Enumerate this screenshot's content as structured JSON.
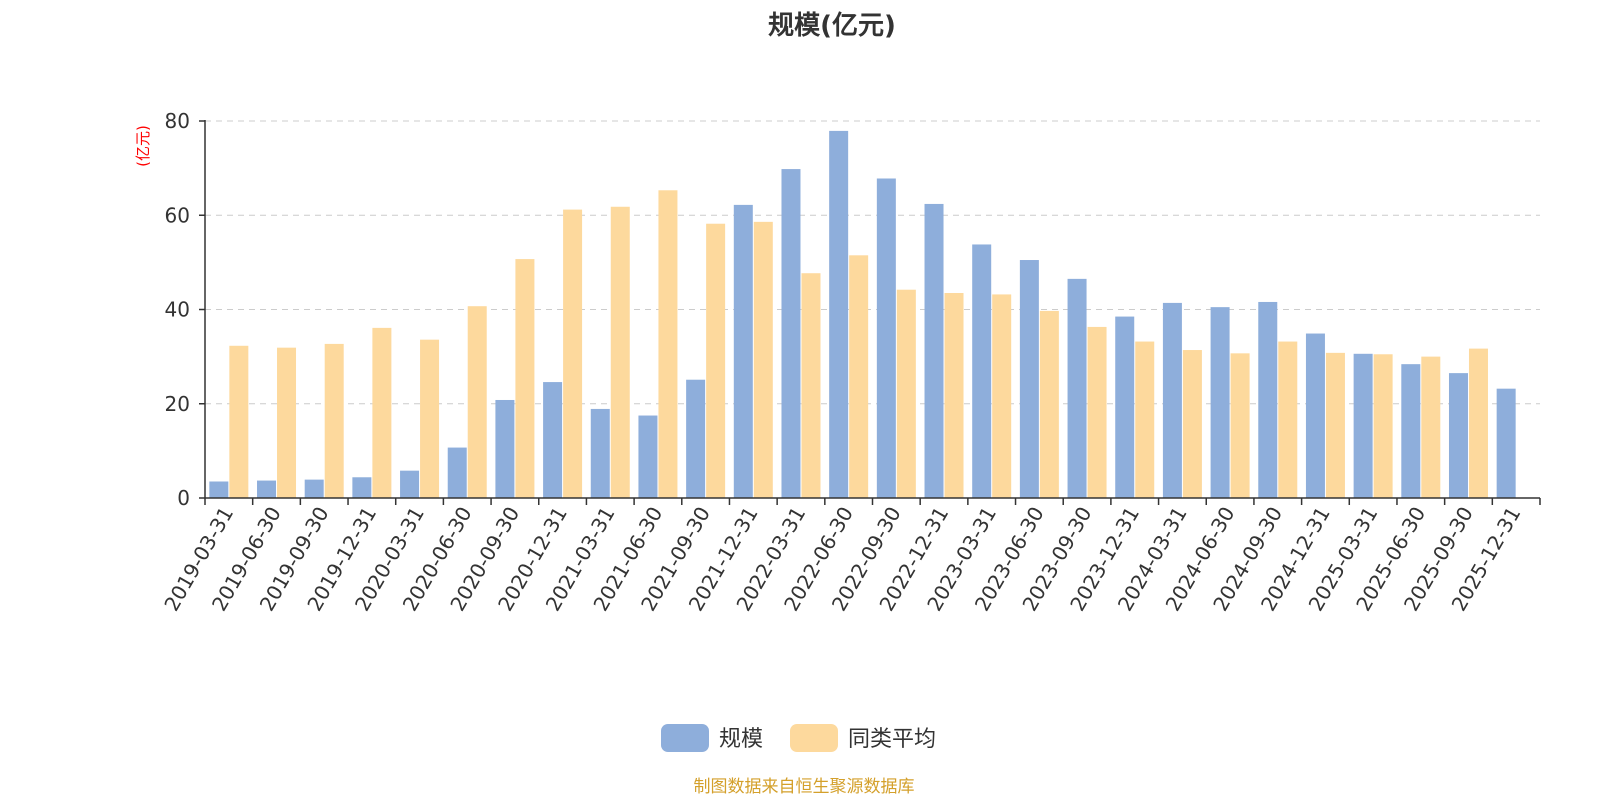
{
  "chart_data": {
    "type": "bar",
    "title": "规模(亿元)",
    "ylabel": "(亿元)",
    "ylim": [
      0,
      80
    ],
    "yticks": [
      0,
      20,
      40,
      60,
      80
    ],
    "grid": true,
    "legend_position": "bottom",
    "categories": [
      "2019-03-31",
      "2019-06-30",
      "2019-09-30",
      "2019-12-31",
      "2020-03-31",
      "2020-06-30",
      "2020-09-30",
      "2020-12-31",
      "2021-03-31",
      "2021-06-30",
      "2021-09-30",
      "2021-12-31",
      "2022-03-31",
      "2022-06-30",
      "2022-09-30",
      "2022-12-31",
      "2023-03-31",
      "2023-06-30",
      "2023-09-30",
      "2023-12-31",
      "2024-03-31",
      "2024-06-30",
      "2024-09-30",
      "2024-12-31",
      "2025-03-31",
      "2025-06-30",
      "2025-09-30",
      "2025-12-31"
    ],
    "series": [
      {
        "name": "规模",
        "color": "#8eaedb",
        "values": [
          3.5,
          3.7,
          3.9,
          4.4,
          5.8,
          10.7,
          20.8,
          24.6,
          18.9,
          17.5,
          25.1,
          62.2,
          69.8,
          77.9,
          67.8,
          62.4,
          53.8,
          50.5,
          46.5,
          38.5,
          41.4,
          40.5,
          41.6,
          34.9,
          30.6,
          28.4,
          26.5,
          23.2
        ]
      },
      {
        "name": "同类平均",
        "color": "#fdd99d",
        "values": [
          32.3,
          31.9,
          32.7,
          36.1,
          33.6,
          40.7,
          50.7,
          61.2,
          61.8,
          65.3,
          58.2,
          58.6,
          47.7,
          51.5,
          44.2,
          43.5,
          43.2,
          39.7,
          36.3,
          33.2,
          31.4,
          30.7,
          33.2,
          30.8,
          30.5,
          30.0,
          31.7,
          null
        ]
      }
    ]
  },
  "footer": {
    "source": "制图数据来自恒生聚源数据库",
    "source_color": "#d4a02b"
  }
}
